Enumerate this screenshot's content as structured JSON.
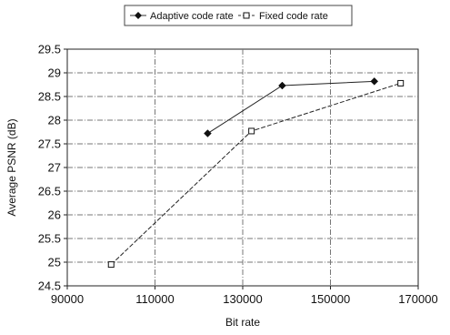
{
  "chart_data": {
    "type": "line",
    "xlabel": "Bit rate",
    "ylabel": "Average PSNR (dB)",
    "xlim": [
      90000,
      170000
    ],
    "ylim": [
      24.5,
      29.5
    ],
    "x_ticks": [
      "90000",
      "110000",
      "130000",
      "150000",
      "170000"
    ],
    "y_ticks": [
      "24.5",
      "25",
      "25.5",
      "26",
      "26.5",
      "27",
      "27.5",
      "28",
      "28.5",
      "29",
      "29.5"
    ],
    "legend_position": "top",
    "grid": true,
    "series": [
      {
        "name": "Adaptive code rate",
        "marker": "filled-diamond",
        "x": [
          122000,
          139000,
          160000
        ],
        "y": [
          27.72,
          28.73,
          28.82
        ]
      },
      {
        "name": "Fixed code rate",
        "marker": "hollow-square",
        "x": [
          100000,
          132000,
          166000
        ],
        "y": [
          24.95,
          27.77,
          28.78
        ]
      }
    ]
  }
}
